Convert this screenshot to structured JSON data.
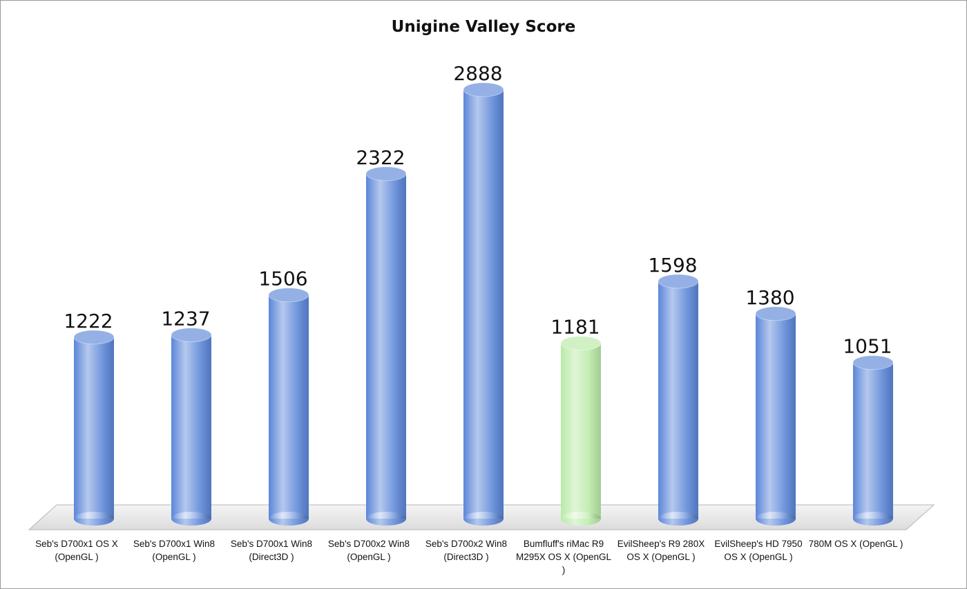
{
  "chart_data": {
    "type": "bar",
    "title": "Unigine Valley Score",
    "categories": [
      "Seb's D700x1 OS X (OpenGL )",
      "Seb's D700x1 Win8 (OpenGL )",
      "Seb's D700x1 Win8 (Direct3D )",
      "Seb's D700x2 Win8 (OpenGL )",
      "Seb's D700x2 Win8 (Direct3D )",
      "Bumfluff's riMac R9 M295X OS X (OpenGL )",
      "EvilSheep's R9 280X OS X (OpenGL )",
      "EvilSheep's HD 7950 OS X (OpenGL )",
      "780M OS X (OpenGL )"
    ],
    "values": [
      1222,
      1237,
      1506,
      2322,
      2888,
      1181,
      1598,
      1380,
      1051
    ],
    "colors": [
      "#5b86d8",
      "#5b86d8",
      "#5b86d8",
      "#5b86d8",
      "#5b86d8",
      "#b9eaa6",
      "#5b86d8",
      "#5b86d8",
      "#5b86d8"
    ]
  }
}
